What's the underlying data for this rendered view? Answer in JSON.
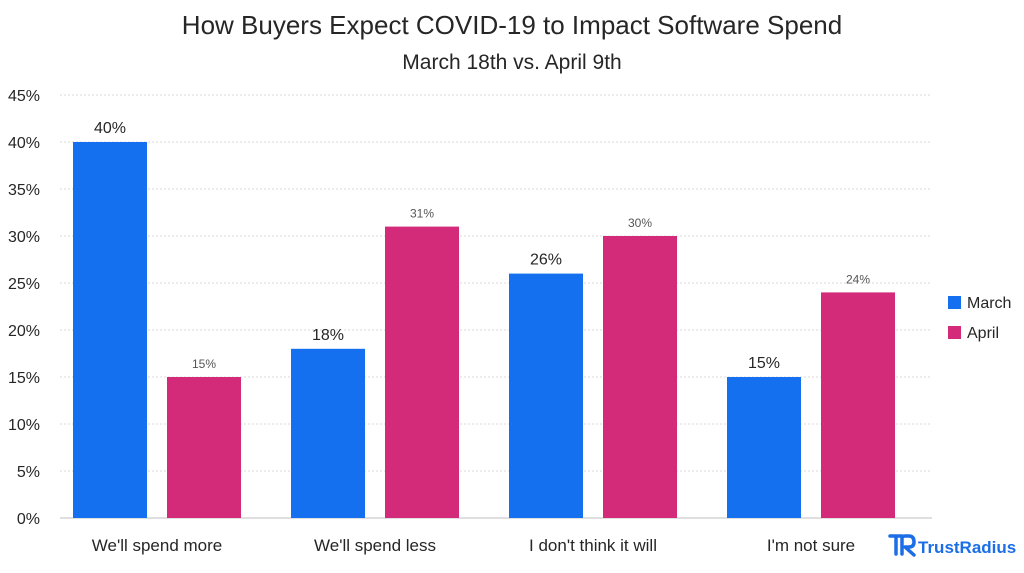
{
  "chart_data": {
    "type": "bar",
    "title": "How Buyers Expect COVID-19 to Impact Software Spend",
    "subtitle": "March 18th vs. April 9th",
    "categories": [
      "We'll spend more",
      "We'll spend less",
      "I don't think it will",
      "I'm not sure"
    ],
    "series": [
      {
        "name": "March",
        "values": [
          40,
          18,
          26,
          15
        ],
        "color": "#1570EF",
        "labels": [
          "40%",
          "18%",
          "26%",
          "15%"
        ]
      },
      {
        "name": "April",
        "values": [
          15,
          31,
          30,
          24
        ],
        "color": "#D42A7A",
        "labels": [
          "15%",
          "31%",
          "30%",
          "24%"
        ]
      }
    ],
    "ylim": [
      0,
      45
    ],
    "yticks": [
      0,
      5,
      10,
      15,
      20,
      25,
      30,
      35,
      40,
      45
    ],
    "ytick_labels": [
      "0%",
      "5%",
      "10%",
      "15%",
      "20%",
      "25%",
      "30%",
      "35%",
      "40%",
      "45%"
    ],
    "grid": true,
    "legend_position": "right",
    "xlabel": "",
    "ylabel": ""
  },
  "brand": {
    "name": "TrustRadius",
    "color": "#1B6EE6"
  }
}
